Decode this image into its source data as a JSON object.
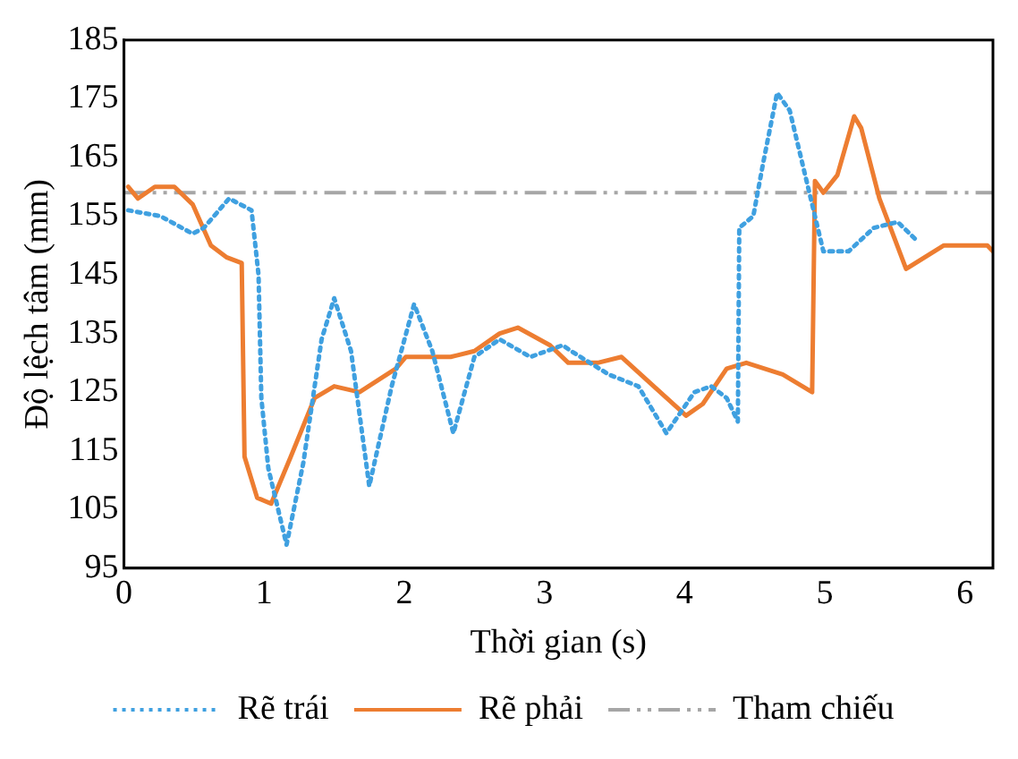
{
  "chart_data": {
    "type": "line",
    "xlabel": "Thời gian (s)",
    "ylabel": "Độ lệch tâm (mm)",
    "xlim": [
      0,
      6.2
    ],
    "xticks": [
      0,
      1,
      2,
      3,
      4,
      5,
      6
    ],
    "ylim": [
      95,
      185
    ],
    "yticks": [
      95,
      105,
      115,
      125,
      135,
      145,
      155,
      165,
      175,
      185
    ],
    "grid": false,
    "legend": "bottom",
    "marker": "none",
    "series": [
      {
        "name": "Rẽ trái",
        "color": "#3fa0e0",
        "line_style": "dotted",
        "x": [
          0.03,
          0.26,
          0.49,
          0.57,
          0.75,
          0.91,
          0.96,
          0.98,
          1.03,
          1.16,
          1.28,
          1.41,
          1.5,
          1.62,
          1.75,
          1.91,
          2.07,
          2.2,
          2.35,
          2.5,
          2.68,
          2.9,
          3.13,
          3.19,
          3.46,
          3.67,
          3.87,
          4.07,
          4.19,
          4.3,
          4.38,
          4.39,
          4.49,
          4.56,
          4.66,
          4.75,
          4.86,
          4.99,
          5.17,
          5.35,
          5.52,
          5.65
        ],
        "values": [
          156,
          155,
          152,
          153,
          158,
          156,
          145,
          124,
          112,
          99,
          113,
          134,
          141,
          132,
          109,
          126,
          140,
          132,
          118,
          131,
          134,
          131,
          133,
          132,
          128,
          126,
          118,
          125,
          126,
          124,
          120,
          153,
          155,
          164,
          176,
          173,
          162,
          149,
          149,
          153,
          154,
          151
        ]
      },
      {
        "name": "Rẽ phải",
        "color": "#ed7d31",
        "line_style": "solid",
        "x": [
          0.03,
          0.1,
          0.22,
          0.36,
          0.49,
          0.62,
          0.73,
          0.84,
          0.86,
          0.95,
          1.05,
          1.19,
          1.36,
          1.5,
          1.68,
          1.94,
          2.01,
          2.33,
          2.5,
          2.68,
          2.81,
          3.04,
          3.17,
          3.38,
          3.55,
          3.78,
          4.01,
          4.13,
          4.3,
          4.44,
          4.7,
          4.91,
          4.93,
          4.99,
          5.09,
          5.21,
          5.26,
          5.39,
          5.58,
          5.85,
          6.16,
          6.2
        ],
        "values": [
          160,
          158,
          160,
          160,
          157,
          150,
          148,
          147,
          114,
          107,
          106,
          114,
          124,
          126,
          125,
          129,
          131,
          131,
          132,
          135,
          136,
          133,
          130,
          130,
          131,
          126,
          121,
          123,
          129,
          130,
          128,
          125,
          161,
          159,
          162,
          172,
          170,
          158,
          146,
          150,
          150,
          149
        ]
      }
    ],
    "ref_lines": [
      {
        "axis": "y",
        "value": 159,
        "label": "Tham chiếu",
        "color": "#a6a6a6",
        "line_style": "dashed"
      }
    ]
  }
}
